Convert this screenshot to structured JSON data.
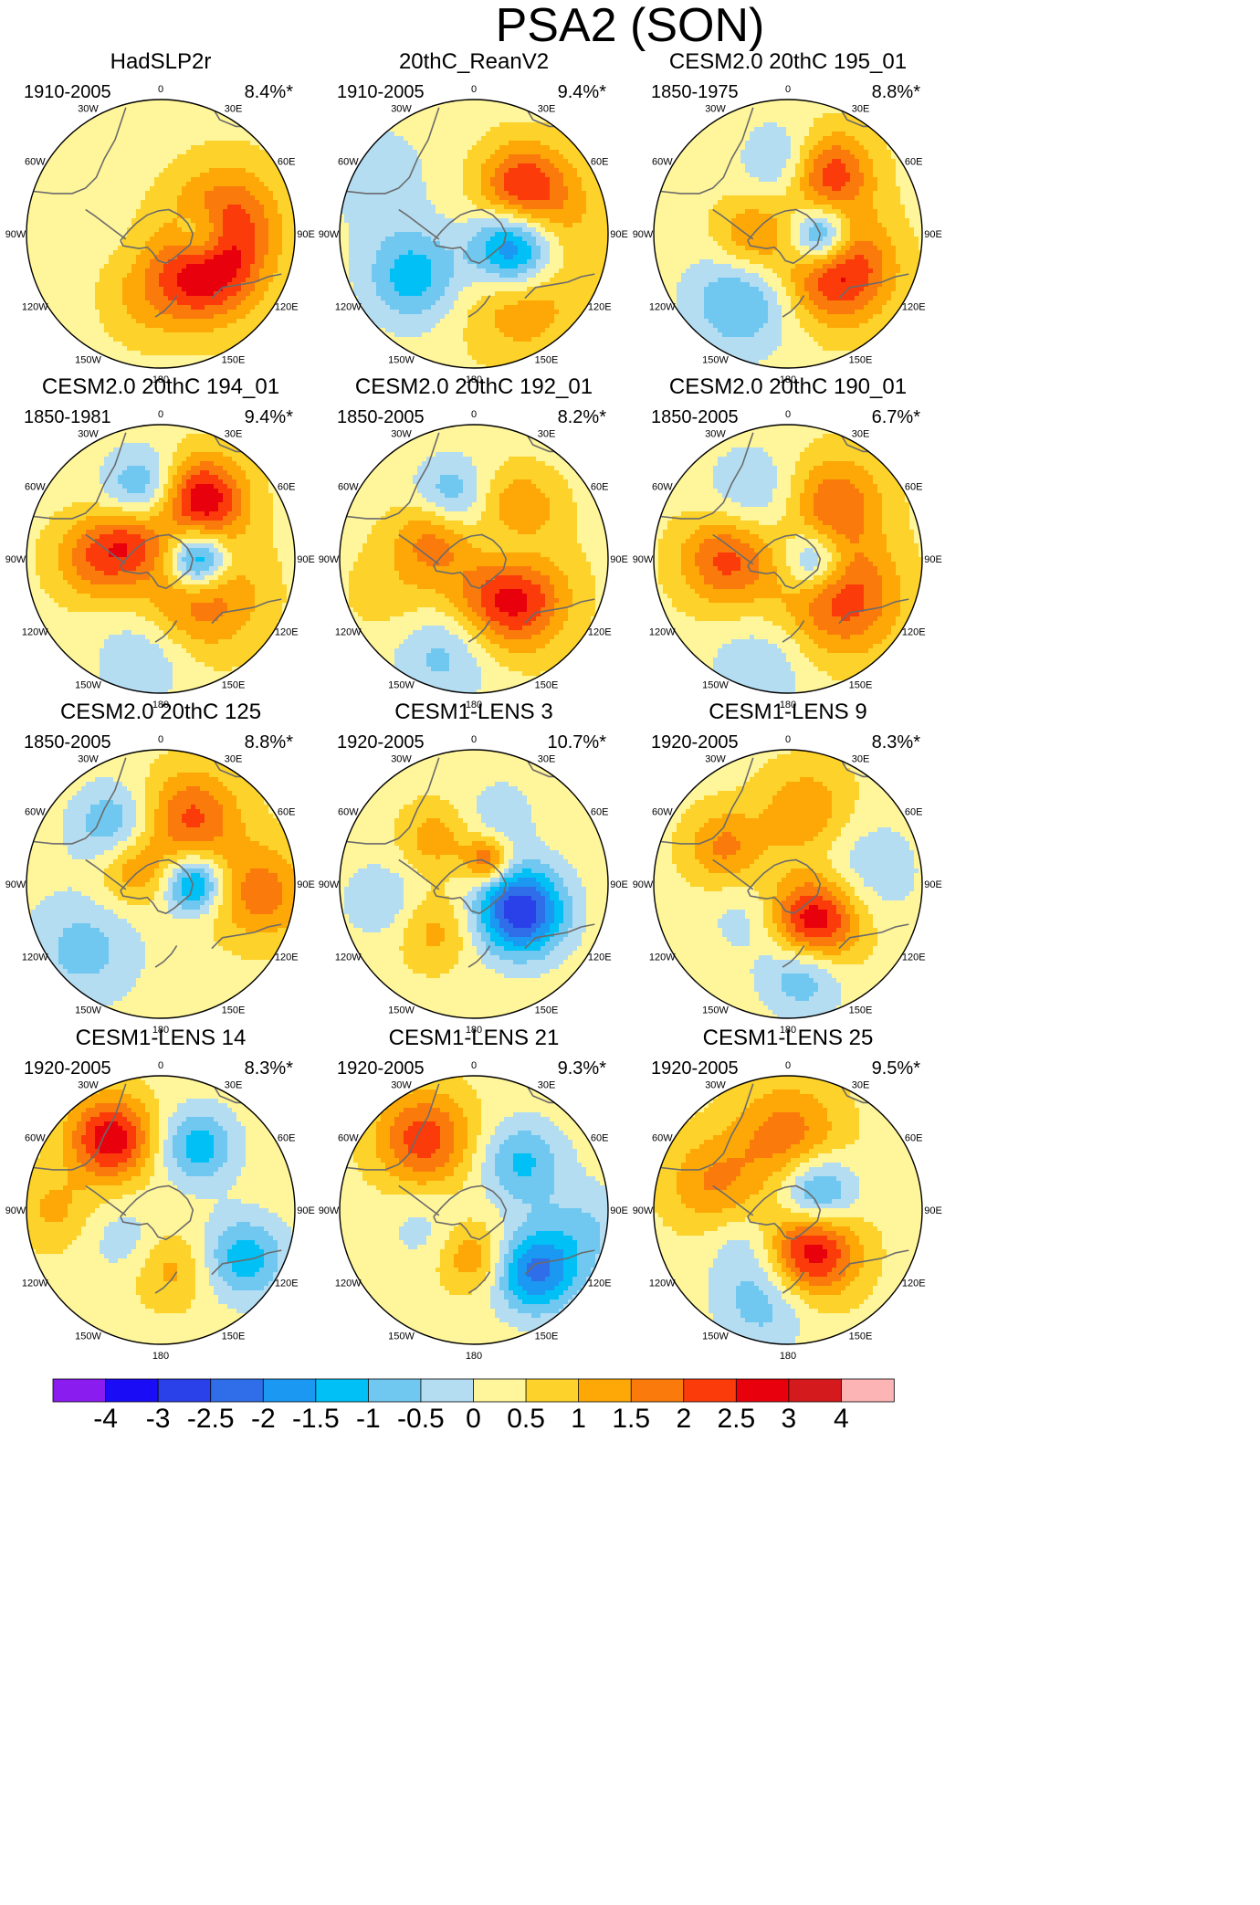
{
  "chart_data": {
    "type": "contour-map-panel",
    "title": "PSA2 (SON)",
    "projection": "south-polar-stereographic",
    "longitude_labels": [
      "0",
      "30E",
      "60E",
      "90E",
      "120E",
      "150E",
      "180",
      "150W",
      "120W",
      "90W",
      "60W",
      "30W"
    ],
    "colorbar": {
      "levels": [
        "-4",
        "-3",
        "-2.5",
        "-2",
        "-1.5",
        "-1",
        "-0.5",
        "0",
        "0.5",
        "1",
        "1.5",
        "2",
        "2.5",
        "3",
        "4"
      ],
      "colors": [
        "#8a1cf0",
        "#1a0cf5",
        "#2a40e8",
        "#2f6ee8",
        "#1a98f2",
        "#00c0f5",
        "#70c8f0",
        "#b4ddf2",
        "#fff59a",
        "#fdd22a",
        "#fda806",
        "#fa7b0c",
        "#fb3c0a",
        "#e8000c",
        "#d41a1c",
        "#fdb4b4"
      ]
    },
    "panels": [
      {
        "title": "HadSLP2r",
        "period": "1910-2005",
        "variance": "8.4%*",
        "blobs": [
          {
            "lon": 127,
            "r": 0.42,
            "v": 2.6,
            "s": 0.28
          },
          {
            "lon": 75,
            "r": 0.52,
            "v": 1.5,
            "s": 0.28
          },
          {
            "lon": 205,
            "r": 0.42,
            "v": 1.2,
            "s": 0.28
          },
          {
            "lon": 95,
            "r": 0.3,
            "v": -2.0,
            "s": 0.16
          },
          {
            "lon": 215,
            "r": 0.25,
            "v": -0.5,
            "s": 0.22
          },
          {
            "lon": 235,
            "r": 0.6,
            "v": -0.4,
            "s": 0.35
          }
        ]
      },
      {
        "title": "20thC_ReanV2",
        "period": "1910-2005",
        "variance": "9.4%*",
        "blobs": [
          {
            "lon": 110,
            "r": 0.32,
            "v": -3.1,
            "s": 0.22
          },
          {
            "lon": 235,
            "r": 0.55,
            "v": -1.6,
            "s": 0.25
          },
          {
            "lon": 45,
            "r": 0.5,
            "v": 1.8,
            "s": 0.22
          },
          {
            "lon": 145,
            "r": 0.6,
            "v": 1.2,
            "s": 0.3
          },
          {
            "lon": 75,
            "r": 0.55,
            "v": 1.0,
            "s": 0.3
          },
          {
            "lon": 300,
            "r": 0.85,
            "v": -0.6,
            "s": 0.3
          }
        ]
      },
      {
        "title": "CESM2.0 20thC 195_01",
        "period": "1850-1975",
        "variance": "8.8%*",
        "blobs": [
          {
            "lon": 95,
            "r": 0.25,
            "v": -2.8,
            "s": 0.16
          },
          {
            "lon": 125,
            "r": 0.45,
            "v": 2.6,
            "s": 0.28
          },
          {
            "lon": 35,
            "r": 0.55,
            "v": 2.0,
            "s": 0.22
          },
          {
            "lon": 265,
            "r": 0.28,
            "v": 1.3,
            "s": 0.2
          },
          {
            "lon": 215,
            "r": 0.6,
            "v": -1.4,
            "s": 0.28
          },
          {
            "lon": 355,
            "r": 0.55,
            "v": -1.0,
            "s": 0.2
          }
        ]
      },
      {
        "title": "CESM2.0 20thC 194_01",
        "period": "1850-1981",
        "variance": "9.4%*",
        "blobs": [
          {
            "lon": 92,
            "r": 0.28,
            "v": -2.9,
            "s": 0.16
          },
          {
            "lon": 35,
            "r": 0.55,
            "v": 2.6,
            "s": 0.22
          },
          {
            "lon": 130,
            "r": 0.4,
            "v": 1.7,
            "s": 0.3
          },
          {
            "lon": 300,
            "r": 0.25,
            "v": 1.5,
            "s": 0.2
          },
          {
            "lon": 270,
            "r": 0.5,
            "v": 1.4,
            "s": 0.22
          },
          {
            "lon": 345,
            "r": 0.55,
            "v": -1.4,
            "s": 0.2
          },
          {
            "lon": 190,
            "r": 0.75,
            "v": -0.8,
            "s": 0.25
          }
        ]
      },
      {
        "title": "CESM2.0 20thC 192_01",
        "period": "1850-2005",
        "variance": "8.2%*",
        "blobs": [
          {
            "lon": 135,
            "r": 0.38,
            "v": 2.8,
            "s": 0.28
          },
          {
            "lon": 45,
            "r": 0.45,
            "v": 1.8,
            "s": 0.22
          },
          {
            "lon": 70,
            "r": 0.3,
            "v": -1.7,
            "s": 0.22
          },
          {
            "lon": 340,
            "r": 0.5,
            "v": -1.3,
            "s": 0.2
          },
          {
            "lon": 200,
            "r": 0.7,
            "v": -1.2,
            "s": 0.28
          },
          {
            "lon": 300,
            "r": 0.35,
            "v": 1.3,
            "s": 0.2
          },
          {
            "lon": 240,
            "r": 0.55,
            "v": 0.7,
            "s": 0.3
          }
        ]
      },
      {
        "title": "CESM2.0 20thC 190_01",
        "period": "1850-2005",
        "variance": "6.7%*",
        "blobs": [
          {
            "lon": 95,
            "r": 0.2,
            "v": -1.8,
            "s": 0.16
          },
          {
            "lon": 125,
            "r": 0.5,
            "v": 2.0,
            "s": 0.3
          },
          {
            "lon": 270,
            "r": 0.45,
            "v": 1.9,
            "s": 0.25
          },
          {
            "lon": 40,
            "r": 0.55,
            "v": 1.6,
            "s": 0.25
          },
          {
            "lon": 330,
            "r": 0.55,
            "v": -0.9,
            "s": 0.25
          },
          {
            "lon": 195,
            "r": 0.85,
            "v": -0.8,
            "s": 0.25
          }
        ]
      },
      {
        "title": "CESM2.0 20thC 125",
        "period": "1850-2005",
        "variance": "8.8%*",
        "blobs": [
          {
            "lon": 90,
            "r": 0.25,
            "v": -2.2,
            "s": 0.15
          },
          {
            "lon": 25,
            "r": 0.55,
            "v": 1.8,
            "s": 0.25
          },
          {
            "lon": 95,
            "r": 0.75,
            "v": 1.5,
            "s": 0.25
          },
          {
            "lon": 300,
            "r": 0.25,
            "v": 1.3,
            "s": 0.2
          },
          {
            "lon": 320,
            "r": 0.55,
            "v": -1.4,
            "s": 0.22
          },
          {
            "lon": 230,
            "r": 0.75,
            "v": -1.0,
            "s": 0.3
          }
        ]
      },
      {
        "title": "CESM1-LENS 3",
        "period": "1920-2005",
        "variance": "10.7%*",
        "blobs": [
          {
            "lon": 120,
            "r": 0.4,
            "v": -3.3,
            "s": 0.23
          },
          {
            "lon": 30,
            "r": 0.2,
            "v": 1.9,
            "s": 0.12
          },
          {
            "lon": 320,
            "r": 0.45,
            "v": 1.0,
            "s": 0.18
          },
          {
            "lon": 220,
            "r": 0.45,
            "v": 0.9,
            "s": 0.2
          },
          {
            "lon": 260,
            "r": 0.7,
            "v": -0.8,
            "s": 0.2
          },
          {
            "lon": 20,
            "r": 0.55,
            "v": -0.6,
            "s": 0.2
          }
        ]
      },
      {
        "title": "CESM1-LENS 9",
        "period": "1920-2005",
        "variance": "8.3%*",
        "blobs": [
          {
            "lon": 145,
            "r": 0.35,
            "v": 3.0,
            "s": 0.24
          },
          {
            "lon": 170,
            "r": 0.65,
            "v": -1.6,
            "s": 0.22
          },
          {
            "lon": 15,
            "r": 0.55,
            "v": 1.2,
            "s": 0.25
          },
          {
            "lon": 300,
            "r": 0.55,
            "v": 1.3,
            "s": 0.2
          },
          {
            "lon": 80,
            "r": 0.55,
            "v": -0.8,
            "s": 0.3
          },
          {
            "lon": 230,
            "r": 0.4,
            "v": -0.6,
            "s": 0.2
          }
        ]
      },
      {
        "title": "CESM1-LENS 14",
        "period": "1920-2005",
        "variance": "8.3%*",
        "blobs": [
          {
            "lon": 325,
            "r": 0.65,
            "v": 2.6,
            "s": 0.22
          },
          {
            "lon": 120,
            "r": 0.72,
            "v": -1.6,
            "s": 0.22
          },
          {
            "lon": 30,
            "r": 0.55,
            "v": -1.6,
            "s": 0.2
          },
          {
            "lon": 170,
            "r": 0.45,
            "v": 0.9,
            "s": 0.2
          },
          {
            "lon": 230,
            "r": 0.35,
            "v": -0.6,
            "s": 0.2
          },
          {
            "lon": 270,
            "r": 0.8,
            "v": 0.8,
            "s": 0.2
          }
        ]
      },
      {
        "title": "CESM1-LENS 21",
        "period": "1920-2005",
        "variance": "9.3%*",
        "blobs": [
          {
            "lon": 325,
            "r": 0.65,
            "v": 2.0,
            "s": 0.25
          },
          {
            "lon": 135,
            "r": 0.65,
            "v": -2.4,
            "s": 0.22
          },
          {
            "lon": 45,
            "r": 0.5,
            "v": -1.4,
            "s": 0.22
          },
          {
            "lon": 180,
            "r": 0.35,
            "v": 1.2,
            "s": 0.18
          },
          {
            "lon": 100,
            "r": 0.85,
            "v": -0.8,
            "s": 0.25
          },
          {
            "lon": 250,
            "r": 0.4,
            "v": -0.5,
            "s": 0.2
          }
        ]
      },
      {
        "title": "CESM1-LENS 25",
        "period": "1920-2005",
        "variance": "9.5%*",
        "blobs": [
          {
            "lon": 150,
            "r": 0.35,
            "v": 2.7,
            "s": 0.24
          },
          {
            "lon": 60,
            "r": 0.25,
            "v": -2.0,
            "s": 0.2
          },
          {
            "lon": 0,
            "r": 0.55,
            "v": 1.5,
            "s": 0.28
          },
          {
            "lon": 290,
            "r": 0.6,
            "v": 1.2,
            "s": 0.25
          },
          {
            "lon": 195,
            "r": 0.7,
            "v": -1.1,
            "s": 0.25
          },
          {
            "lon": 230,
            "r": 0.4,
            "v": -0.6,
            "s": 0.2
          }
        ]
      }
    ]
  }
}
